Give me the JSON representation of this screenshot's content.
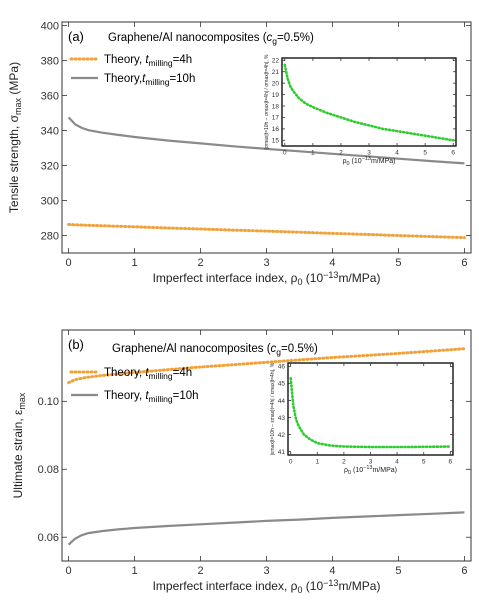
{
  "colors": {
    "theory_4h": "#f0a13a",
    "theory_10h": "#8a8a8a",
    "inset_curve": "#2ecc2e",
    "axis": "#333333"
  },
  "chart_data": [
    {
      "type": "line",
      "panel_label": "(a)",
      "title": "Graphene/Al nanocomposites (c_g=0.5%)",
      "title_parts": {
        "prefix": "Graphene/Al nanocomposites (",
        "symbol": "c",
        "sub": "g",
        "suffix": "=0.5%)"
      },
      "xlabel": "Imperfect interface index, ρ",
      "xlabel_parts": {
        "main": "Imperfect interface index, ρ",
        "sub": "0",
        "mid": " (10",
        "sup": "−13",
        "end": "m/MPa)"
      },
      "ylabel": "Tensile strength, σ_max (MPa)",
      "ylabel_parts": {
        "main": "Tensile strength, σ",
        "sub": "max",
        "end": " (MPa)"
      },
      "xlim": [
        -0.1,
        6.1
      ],
      "ylim": [
        270,
        402
      ],
      "xticks": [
        0,
        1,
        2,
        3,
        4,
        5,
        6
      ],
      "yticks": [
        280,
        300,
        320,
        340,
        360,
        380,
        400
      ],
      "legend_position": "upper-left",
      "series": [
        {
          "name": "Theory, t_milling=4h",
          "legend_parts": {
            "prefix": "Theory, ",
            "sym": "t",
            "sub": "milling",
            "suffix": "=4h"
          },
          "style": "dotted",
          "color_key": "theory_4h",
          "x": [
            0,
            0.25,
            0.5,
            1,
            1.5,
            2,
            2.5,
            3,
            3.5,
            4,
            4.5,
            5,
            5.5,
            6
          ],
          "y": [
            286.3,
            285.9,
            285.6,
            285.0,
            284.3,
            283.7,
            283.1,
            282.5,
            281.9,
            281.2,
            280.6,
            280.0,
            279.4,
            278.8
          ]
        },
        {
          "name": "Theory, t_milling=10h",
          "legend_parts": {
            "prefix": "Theory,",
            "sym": "t",
            "sub": "milling",
            "suffix": "=10h"
          },
          "style": "solid",
          "color_key": "theory_10h",
          "x": [
            0,
            0.05,
            0.1,
            0.2,
            0.3,
            0.5,
            0.75,
            1,
            1.5,
            2,
            2.5,
            3,
            3.5,
            4,
            4.5,
            5,
            5.5,
            6
          ],
          "y": [
            347.5,
            345.5,
            343.5,
            341.5,
            340.2,
            338.8,
            337.5,
            336.3,
            334.3,
            332.6,
            331.0,
            329.5,
            328.1,
            326.7,
            325.3,
            323.9,
            322.5,
            321.2
          ]
        }
      ],
      "inset": {
        "type": "line",
        "xlabel_parts": {
          "main": "ρ",
          "sub": "0",
          "mid": " (10",
          "sup": "−13",
          "end": "m/MPa)"
        },
        "ylabel": "|σmax|t=10h − σmax|t=4h| / σmax|t=4h|, %",
        "xlim": [
          -0.1,
          6.1
        ],
        "ylim": [
          14.5,
          22.2
        ],
        "xticks": [
          0,
          1,
          2,
          3,
          4,
          5,
          6
        ],
        "yticks": [
          15,
          16,
          17,
          18,
          19,
          20,
          21,
          22
        ],
        "x": [
          0,
          0.05,
          0.1,
          0.2,
          0.3,
          0.5,
          0.75,
          1,
          1.5,
          2,
          2.5,
          3,
          3.5,
          4,
          4.5,
          5,
          5.5,
          6
        ],
        "y": [
          21.6,
          21.0,
          20.4,
          19.7,
          19.3,
          18.7,
          18.2,
          17.9,
          17.4,
          17.0,
          16.6,
          16.3,
          16.0,
          15.8,
          15.6,
          15.4,
          15.2,
          15.0
        ]
      }
    },
    {
      "type": "line",
      "panel_label": "(b)",
      "title": "Graphene/Al nanocomposites (c_g=0.5%)",
      "title_parts": {
        "prefix": "Graphene/Al nanocomposites (",
        "symbol": "c",
        "sub": "g",
        "suffix": "=0.5%)"
      },
      "xlabel": "Imperfect interface index, ρ",
      "xlabel_parts": {
        "main": "Imperfect interface index, ρ",
        "sub": "0",
        "mid": " (10",
        "sup": "−13",
        "end": "m/MPa)"
      },
      "ylabel": "Ultimate strain, ε_max",
      "ylabel_parts": {
        "main": "Ultimate strain, ε",
        "sub": "max",
        "end": ""
      },
      "xlim": [
        -0.1,
        6.1
      ],
      "ylim": [
        0.053,
        0.121
      ],
      "xticks": [
        0,
        1,
        2,
        3,
        4,
        5,
        6
      ],
      "yticks": [
        0.06,
        0.08,
        0.1
      ],
      "ytick_labels": [
        "0.06",
        "0.08",
        "0.10"
      ],
      "legend_position": "upper-left",
      "series": [
        {
          "name": "Theory, t_milling=4h",
          "legend_parts": {
            "prefix": "Theory, ",
            "sym": "t",
            "sub": "milling",
            "suffix": "=4h"
          },
          "style": "dotted",
          "color_key": "theory_4h",
          "x": [
            0,
            0.1,
            0.25,
            0.5,
            1,
            1.5,
            2,
            2.5,
            3,
            3.5,
            4,
            4.5,
            5,
            5.5,
            6
          ],
          "y": [
            0.1055,
            0.1064,
            0.107,
            0.1076,
            0.1085,
            0.1093,
            0.1101,
            0.1108,
            0.1115,
            0.1122,
            0.1129,
            0.1135,
            0.1141,
            0.1148,
            0.1155
          ]
        },
        {
          "name": "Theory, t_milling=10h",
          "legend_parts": {
            "prefix": "Theory, ",
            "sym": "t",
            "sub": "milling",
            "suffix": "=10h"
          },
          "style": "solid",
          "color_key": "theory_10h",
          "x": [
            0,
            0.05,
            0.1,
            0.2,
            0.3,
            0.5,
            0.75,
            1,
            1.5,
            2,
            2.5,
            3,
            3.5,
            4,
            4.5,
            5,
            5.5,
            6
          ],
          "y": [
            0.0578,
            0.0587,
            0.0596,
            0.0606,
            0.0612,
            0.0618,
            0.0623,
            0.0627,
            0.0633,
            0.0638,
            0.0643,
            0.0648,
            0.0652,
            0.0657,
            0.0661,
            0.0665,
            0.0669,
            0.0673
          ]
        }
      ],
      "inset": {
        "type": "line",
        "xlabel_parts": {
          "main": "ρ",
          "sub": "0",
          "mid": " (10",
          "sup": "−13",
          "end": "m/MPa)"
        },
        "ylabel": "|εmax|t=10h − εmax|t=4h| / εmax|t=4h|, %",
        "xlim": [
          -0.1,
          6.1
        ],
        "ylim": [
          40.8,
          46.2
        ],
        "xticks": [
          0,
          1,
          2,
          3,
          4,
          5,
          6
        ],
        "yticks": [
          41,
          42,
          43,
          44,
          45,
          46
        ],
        "x": [
          0,
          0.05,
          0.1,
          0.2,
          0.3,
          0.5,
          0.75,
          1,
          1.5,
          2,
          2.5,
          3,
          3.5,
          4,
          4.5,
          5,
          5.5,
          6
        ],
        "y": [
          45.3,
          44.5,
          43.7,
          42.9,
          42.5,
          42.0,
          41.7,
          41.5,
          41.35,
          41.3,
          41.28,
          41.27,
          41.27,
          41.27,
          41.27,
          41.28,
          41.29,
          41.3
        ]
      }
    }
  ]
}
